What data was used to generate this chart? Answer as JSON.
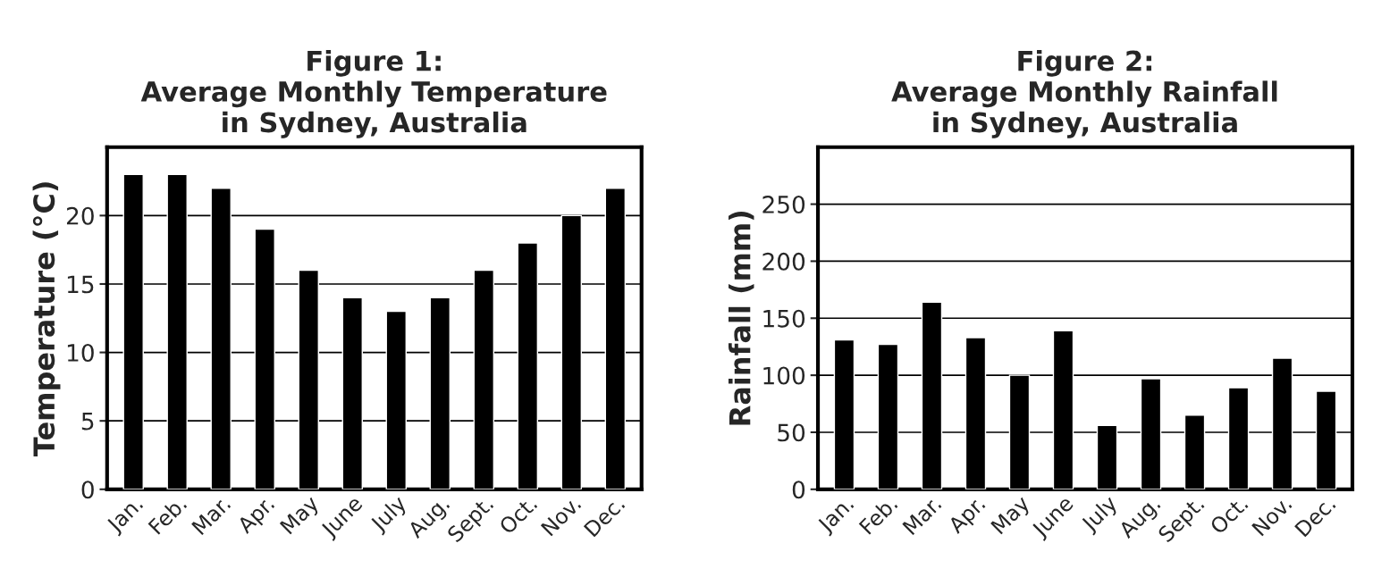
{
  "chart_data": [
    {
      "type": "bar",
      "title": "Figure 1:\nAverage Monthly Temperature\nin Sydney, Australia",
      "ylabel": "Temperature (°C)",
      "categories": [
        "Jan.",
        "Feb.",
        "Mar.",
        "Apr.",
        "May",
        "June",
        "July",
        "Aug.",
        "Sept.",
        "Oct.",
        "Nov.",
        "Dec."
      ],
      "values": [
        23,
        23,
        22,
        19,
        16,
        14,
        13,
        14,
        16,
        18,
        20,
        22
      ],
      "color": "#000000",
      "ylim": [
        0,
        25
      ],
      "yticks": [
        0,
        5,
        10,
        15,
        20
      ],
      "grid": "y"
    },
    {
      "type": "bar",
      "title": "Figure 2:\nAverage Monthly Rainfall\nin Sydney, Australia",
      "ylabel": "Rainfall (mm)",
      "categories": [
        "Jan.",
        "Feb.",
        "Mar.",
        "Apr.",
        "May",
        "June",
        "July",
        "Aug.",
        "Sept.",
        "Oct.",
        "Nov.",
        "Dec."
      ],
      "values": [
        131,
        127,
        164,
        133,
        100,
        139,
        56,
        97,
        65,
        89,
        115,
        86
      ],
      "color": "#000000",
      "ylim": [
        0,
        300
      ],
      "yticks": [
        0,
        50,
        100,
        150,
        200,
        250
      ],
      "grid": "y"
    }
  ]
}
